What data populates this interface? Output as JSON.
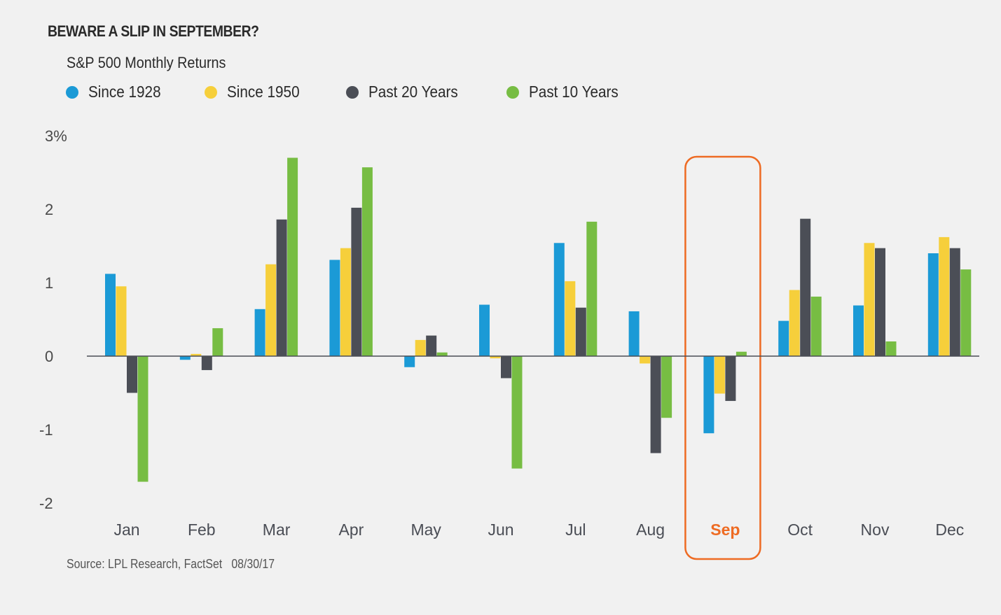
{
  "chart_data": {
    "type": "bar",
    "title": "BEWARE A SLIP IN SEPTEMBER?",
    "subtitle": "S&P 500 Monthly Returns",
    "xlabel": "",
    "ylabel": "",
    "ylim": [
      -2,
      3
    ],
    "yticks": [
      {
        "value": 3,
        "label": "3%"
      },
      {
        "value": 2,
        "label": "2"
      },
      {
        "value": 1,
        "label": "1"
      },
      {
        "value": 0,
        "label": "0"
      },
      {
        "value": -1,
        "label": "-1"
      },
      {
        "value": -2,
        "label": "-2"
      }
    ],
    "grid": false,
    "legend_position": "top-left",
    "categories": [
      "Jan",
      "Feb",
      "Mar",
      "Apr",
      "May",
      "Jun",
      "Jul",
      "Aug",
      "Sep",
      "Oct",
      "Nov",
      "Dec"
    ],
    "highlight_category": "Sep",
    "series": [
      {
        "name": "Since 1928",
        "color": "#1b9ad6",
        "values": [
          1.12,
          -0.05,
          0.64,
          1.31,
          -0.15,
          0.7,
          1.54,
          0.61,
          -1.05,
          0.48,
          0.69,
          1.4
        ]
      },
      {
        "name": "Since 1950",
        "color": "#f6cf3b",
        "values": [
          0.95,
          0.03,
          1.25,
          1.47,
          0.22,
          -0.03,
          1.02,
          -0.1,
          -0.51,
          0.9,
          1.54,
          1.62
        ]
      },
      {
        "name": "Past 20 Years",
        "color": "#4b4e56",
        "values": [
          -0.5,
          -0.19,
          1.86,
          2.02,
          0.28,
          -0.3,
          0.66,
          -1.32,
          -0.61,
          1.87,
          1.47,
          1.47
        ]
      },
      {
        "name": "Past 10 Years",
        "color": "#77bd43",
        "values": [
          -1.71,
          0.38,
          2.7,
          2.57,
          0.05,
          -1.53,
          1.83,
          -0.84,
          0.06,
          0.81,
          0.2,
          1.18
        ]
      }
    ],
    "source": "Source: LPL Research, FactSet   08/30/17"
  },
  "colors": {
    "highlight": "#ee6b23",
    "axis": "#4b4e56"
  }
}
